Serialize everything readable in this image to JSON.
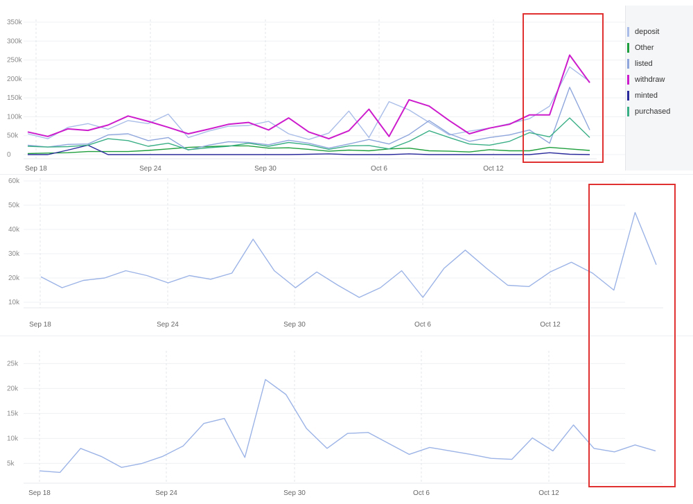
{
  "chart_data": [
    {
      "type": "line",
      "x_ticks": [
        "Sep 18",
        "Sep 24",
        "Sep 30",
        "Oct 6",
        "Oct 12"
      ],
      "yticks": [
        0,
        50000,
        100000,
        150000,
        200000,
        250000,
        300000,
        350000
      ],
      "ytick_labels": [
        "0",
        "50k",
        "100k",
        "150k",
        "200k",
        "250k",
        "300k",
        "350k"
      ],
      "ylim": [
        0,
        350000
      ],
      "grid": true,
      "legend": "right",
      "series": [
        {
          "name": "deposit",
          "color": "#a9bde8",
          "values": [
            55000,
            42000,
            72000,
            82000,
            67000,
            90000,
            82000,
            107000,
            45000,
            62000,
            75000,
            77000,
            88000,
            55000,
            40000,
            57000,
            115000,
            45000,
            140000,
            118000,
            85000,
            52000,
            62000,
            70000,
            82000,
            95000,
            128000,
            232000,
            193000
          ]
        },
        {
          "name": "Other",
          "color": "#1e9e3c",
          "values": [
            3000,
            4000,
            5000,
            8000,
            8000,
            8000,
            11000,
            15000,
            19000,
            21000,
            23000,
            23000,
            17000,
            18000,
            14000,
            9000,
            12000,
            10000,
            15000,
            17000,
            10000,
            9000,
            7000,
            13000,
            10000,
            10000,
            19000,
            15000,
            11000
          ]
        },
        {
          "name": "listed",
          "color": "#8ea6dc",
          "values": [
            25000,
            20000,
            27000,
            28000,
            52000,
            55000,
            37000,
            45000,
            12000,
            25000,
            34000,
            32000,
            26000,
            38000,
            30000,
            17000,
            28000,
            40000,
            28000,
            53000,
            90000,
            55000,
            35000,
            45000,
            52000,
            65000,
            30000,
            178000,
            65000
          ]
        },
        {
          "name": "withdraw",
          "color": "#cc1ccc",
          "values": [
            60000,
            48000,
            68000,
            64000,
            78000,
            102000,
            88000,
            72000,
            55000,
            67000,
            80000,
            85000,
            65000,
            97000,
            60000,
            42000,
            63000,
            120000,
            48000,
            145000,
            128000,
            90000,
            55000,
            70000,
            80000,
            105000,
            105000,
            263000,
            190000
          ]
        },
        {
          "name": "minted",
          "color": "#2a2a9c",
          "values": [
            0,
            0,
            12000,
            25000,
            0,
            0,
            0,
            0,
            0,
            0,
            0,
            0,
            0,
            0,
            1000,
            2000,
            0,
            0,
            0,
            2000,
            0,
            0,
            0,
            0,
            0,
            0,
            5000,
            1000,
            0
          ]
        },
        {
          "name": "purchased",
          "color": "#3aaf86",
          "values": [
            22000,
            20000,
            21000,
            25000,
            42000,
            37000,
            22000,
            30000,
            13000,
            18000,
            22000,
            30000,
            22000,
            32000,
            26000,
            14000,
            23000,
            24000,
            15000,
            35000,
            63000,
            45000,
            28000,
            25000,
            35000,
            58000,
            47000,
            97000,
            45000
          ]
        }
      ]
    },
    {
      "type": "line",
      "x_ticks": [
        "Sep 18",
        "Sep 24",
        "Sep 30",
        "Oct 6",
        "Oct 12"
      ],
      "yticks": [
        10000,
        20000,
        30000,
        40000,
        50000,
        60000
      ],
      "ytick_labels": [
        "10k",
        "20k",
        "30k",
        "40k",
        "50k",
        "60k"
      ],
      "ylim": [
        10000,
        60000
      ],
      "grid": true,
      "series": [
        {
          "color": "#9bb3e6",
          "values": [
            20500,
            16000,
            19000,
            20000,
            23000,
            21000,
            18000,
            21000,
            19500,
            22000,
            36000,
            23000,
            16000,
            22500,
            17000,
            12000,
            16000,
            23000,
            12000,
            24000,
            31500,
            24000,
            17000,
            16500,
            22500,
            26500,
            22000,
            15000,
            47000,
            25500
          ]
        }
      ]
    },
    {
      "type": "line",
      "x_ticks": [
        "Sep 18",
        "Sep 24",
        "Sep 30",
        "Oct 6",
        "Oct 12"
      ],
      "yticks": [
        5000,
        10000,
        15000,
        20000,
        25000
      ],
      "ytick_labels": [
        "5k",
        "10k",
        "15k",
        "20k",
        "25k"
      ],
      "ylim": [
        2000,
        27000
      ],
      "grid": true,
      "series": [
        {
          "color": "#9bb3e6",
          "values": [
            3500,
            3200,
            8000,
            6400,
            4200,
            5000,
            6400,
            8500,
            13000,
            14000,
            6200,
            21800,
            18800,
            12000,
            8000,
            11000,
            11200,
            9000,
            6800,
            8200,
            7500,
            6800,
            6000,
            5800,
            10100,
            7500,
            12700,
            8000,
            7300,
            8700,
            7500
          ]
        }
      ]
    }
  ]
}
